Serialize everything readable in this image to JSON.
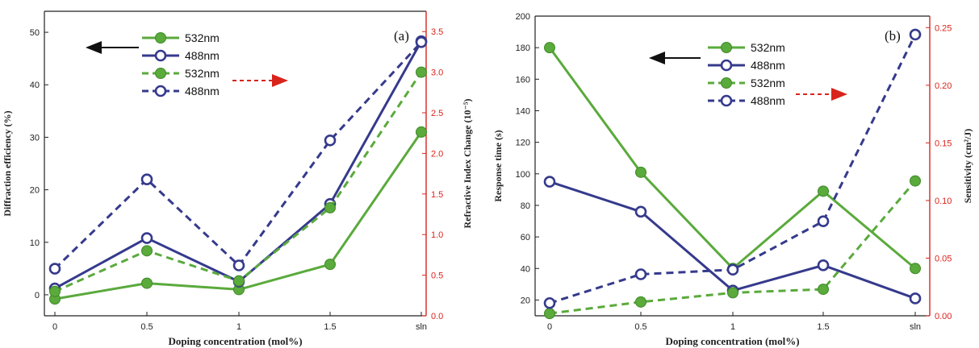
{
  "chart_data": [
    {
      "type": "line",
      "panel_label": "(a)",
      "categories": [
        "0",
        "0.5",
        "1",
        "1.5",
        "sln"
      ],
      "xlabel": "Doping concentration (mol%)",
      "ylabel_left": "Diffraction efficiency (%)",
      "ylabel_right": "Refractive Index Change (10⁻⁵)",
      "ylim_left": [
        -4,
        54
      ],
      "ylim_right": [
        0,
        3.75
      ],
      "yticks_left": [
        0,
        10,
        20,
        30,
        40,
        50
      ],
      "yticks_right": [
        0.0,
        0.5,
        1.0,
        1.5,
        2.0,
        2.5,
        3.0,
        3.5
      ],
      "legend_position": "top-center",
      "series": [
        {
          "name": "532nm",
          "axis": "left",
          "style": "solid",
          "marker": "filled",
          "color": "#5aaa3c",
          "values": [
            -0.8,
            2.2,
            1.0,
            5.8,
            31.0
          ]
        },
        {
          "name": "488nm",
          "axis": "left",
          "style": "solid",
          "marker": "open",
          "color": "#353a8c",
          "values": [
            1.2,
            10.8,
            2.5,
            17.3,
            48.3
          ]
        },
        {
          "name": "532nm",
          "axis": "right",
          "style": "dashed",
          "marker": "filled",
          "color": "#5aaa3c",
          "values": [
            0.3,
            0.8,
            0.43,
            1.33,
            3.0
          ]
        },
        {
          "name": "488nm",
          "axis": "right",
          "style": "dashed",
          "marker": "open",
          "color": "#353a8c",
          "values": [
            0.58,
            1.68,
            0.62,
            2.16,
            3.37
          ]
        }
      ]
    },
    {
      "type": "line",
      "panel_label": "(b)",
      "categories": [
        "0",
        "0.5",
        "1",
        "1.5",
        "sln"
      ],
      "xlabel": "Doping concentration (mol%)",
      "ylabel_left": "Response time (s)",
      "ylabel_right": "Sensitivity (cm²/J)",
      "ylim_left": [
        10,
        200
      ],
      "ylim_right": [
        0,
        0.26
      ],
      "yticks_left": [
        20,
        40,
        60,
        80,
        100,
        120,
        140,
        160,
        180,
        200
      ],
      "yticks_right": [
        0.0,
        0.05,
        0.1,
        0.15,
        0.2,
        0.25
      ],
      "legend_position": "top-center",
      "series": [
        {
          "name": "532nm",
          "axis": "left",
          "style": "solid",
          "marker": "filled",
          "color": "#5aaa3c",
          "values": [
            180,
            101,
            40,
            89,
            40
          ]
        },
        {
          "name": "488nm",
          "axis": "left",
          "style": "solid",
          "marker": "open",
          "color": "#353a8c",
          "values": [
            95,
            76,
            26,
            42,
            21
          ]
        },
        {
          "name": "532nm",
          "axis": "right",
          "style": "dashed",
          "marker": "filled",
          "color": "#5aaa3c",
          "values": [
            0.002,
            0.012,
            0.02,
            0.023,
            0.117
          ]
        },
        {
          "name": "488nm",
          "axis": "right",
          "style": "dashed",
          "marker": "open",
          "color": "#353a8c",
          "values": [
            0.011,
            0.036,
            0.04,
            0.082,
            0.244
          ]
        }
      ]
    }
  ],
  "colors": {
    "left_axis": "#222222",
    "right_axis": "#d9241c",
    "arrow_left": "#111111",
    "arrow_right": "#d9241c"
  },
  "tick_labels_right_a": [
    "0.0",
    "0.5",
    "1.0",
    "1.5",
    "2.0",
    "2.5",
    "3.0",
    "3.5"
  ],
  "tick_labels_right_b": [
    "0.00",
    "0.05",
    "0.10",
    "0.15",
    "0.20",
    "0.25"
  ]
}
